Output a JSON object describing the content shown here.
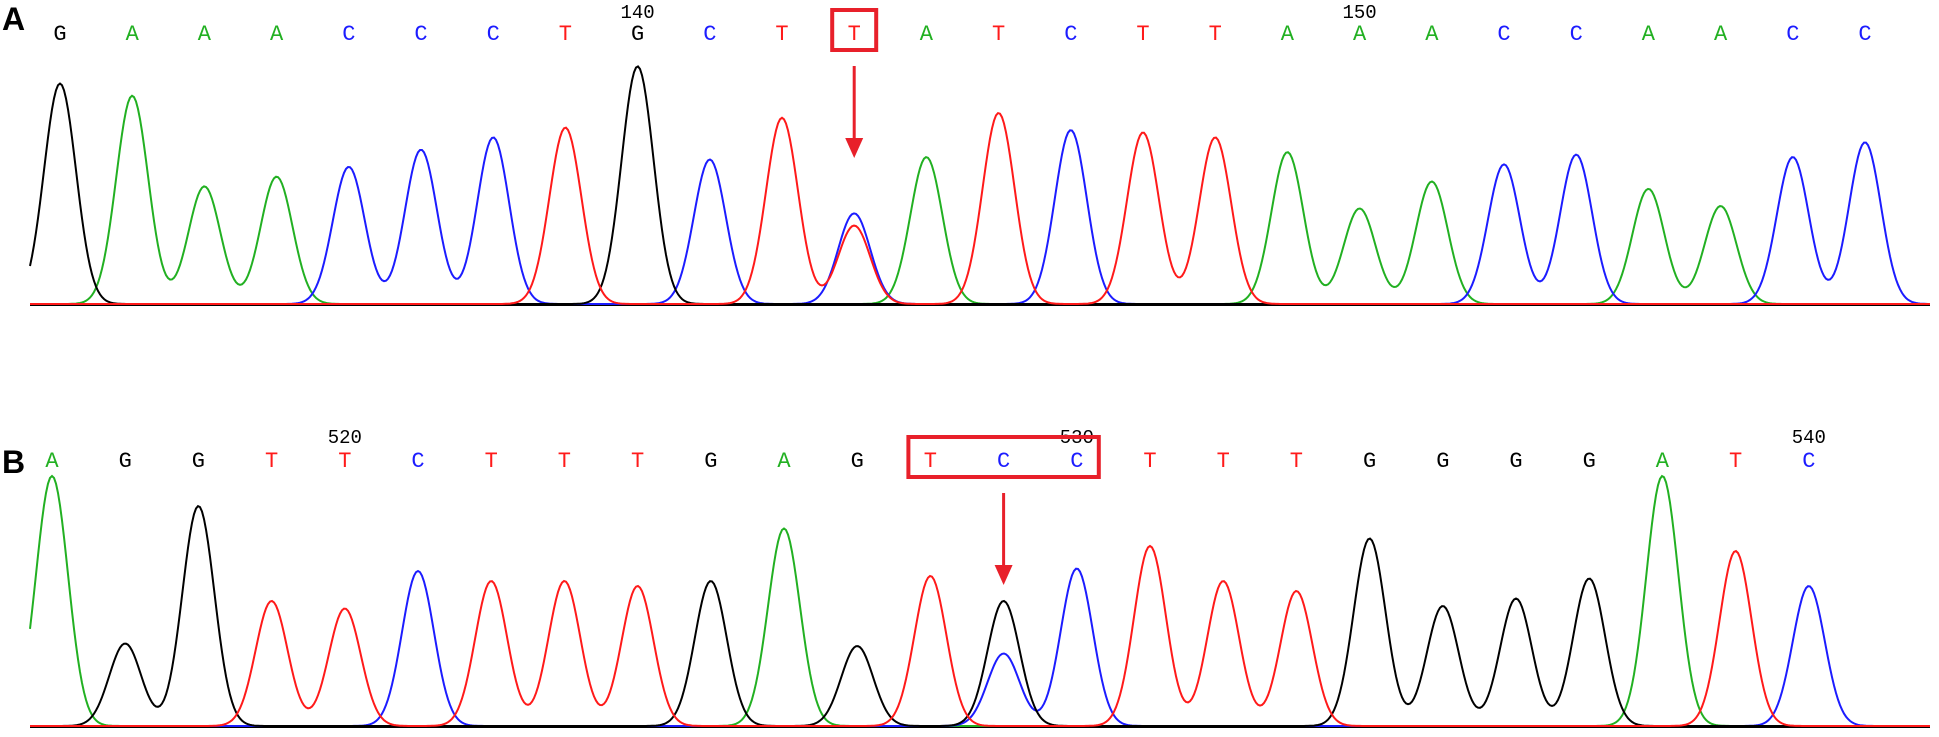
{
  "chart_data": [
    {
      "panel": "A",
      "type": "chromatogram",
      "colors": {
        "A": "#22b022",
        "C": "#1c1cff",
        "G": "#000000",
        "T": "#ff1a1a"
      },
      "bases": [
        "G",
        "A",
        "A",
        "A",
        "C",
        "C",
        "C",
        "T",
        "G",
        "C",
        "T",
        "T",
        "A",
        "T",
        "C",
        "T",
        "T",
        "A",
        "A",
        "A",
        "C",
        "C",
        "A",
        "A",
        "C",
        "C"
      ],
      "position_labels": [
        {
          "index": 8,
          "text": "140"
        },
        {
          "index": 18,
          "text": "150"
        }
      ],
      "highlight": {
        "start": 11,
        "end": 11
      },
      "peaks": [
        {
          "base": "G",
          "h": 0.9
        },
        {
          "base": "A",
          "h": 0.85
        },
        {
          "base": "A",
          "h": 0.48
        },
        {
          "base": "A",
          "h": 0.52
        },
        {
          "base": "C",
          "h": 0.56
        },
        {
          "base": "C",
          "h": 0.63
        },
        {
          "base": "C",
          "h": 0.68
        },
        {
          "base": "T",
          "h": 0.72
        },
        {
          "base": "G",
          "h": 0.97
        },
        {
          "base": "C",
          "h": 0.59
        },
        {
          "base": "T",
          "h": 0.76
        },
        {
          "base": "C",
          "h": 0.37,
          "secondary": {
            "base": "T",
            "h": 0.32
          }
        },
        {
          "base": "A",
          "h": 0.6
        },
        {
          "base": "T",
          "h": 0.78
        },
        {
          "base": "C",
          "h": 0.71
        },
        {
          "base": "T",
          "h": 0.7
        },
        {
          "base": "T",
          "h": 0.68
        },
        {
          "base": "A",
          "h": 0.62
        },
        {
          "base": "A",
          "h": 0.39
        },
        {
          "base": "A",
          "h": 0.5
        },
        {
          "base": "C",
          "h": 0.57
        },
        {
          "base": "C",
          "h": 0.61
        },
        {
          "base": "A",
          "h": 0.47
        },
        {
          "base": "A",
          "h": 0.4
        },
        {
          "base": "C",
          "h": 0.6
        },
        {
          "base": "C",
          "h": 0.66
        }
      ]
    },
    {
      "panel": "B",
      "type": "chromatogram",
      "colors": {
        "A": "#22b022",
        "C": "#1c1cff",
        "G": "#000000",
        "T": "#ff1a1a"
      },
      "bases": [
        "A",
        "G",
        "G",
        "T",
        "T",
        "C",
        "T",
        "T",
        "T",
        "G",
        "A",
        "G",
        "T",
        "C",
        "C",
        "T",
        "T",
        "T",
        "G",
        "G",
        "G",
        "G",
        "A",
        "T",
        "C"
      ],
      "position_labels": [
        {
          "index": 4,
          "text": "520"
        },
        {
          "index": 14,
          "text": "530"
        },
        {
          "index": 24,
          "text": "540"
        }
      ],
      "highlight": {
        "start": 12,
        "end": 14
      },
      "peaks": [
        {
          "base": "A",
          "h": 1.0
        },
        {
          "base": "G",
          "h": 0.33
        },
        {
          "base": "G",
          "h": 0.88
        },
        {
          "base": "T",
          "h": 0.5
        },
        {
          "base": "T",
          "h": 0.47
        },
        {
          "base": "C",
          "h": 0.62
        },
        {
          "base": "T",
          "h": 0.58
        },
        {
          "base": "T",
          "h": 0.58
        },
        {
          "base": "T",
          "h": 0.56
        },
        {
          "base": "G",
          "h": 0.58
        },
        {
          "base": "A",
          "h": 0.79
        },
        {
          "base": "G",
          "h": 0.32
        },
        {
          "base": "T",
          "h": 0.6
        },
        {
          "base": "G",
          "h": 0.5,
          "secondary": {
            "base": "C",
            "h": 0.29
          }
        },
        {
          "base": "C",
          "h": 0.63
        },
        {
          "base": "T",
          "h": 0.72
        },
        {
          "base": "T",
          "h": 0.58
        },
        {
          "base": "T",
          "h": 0.54
        },
        {
          "base": "G",
          "h": 0.75
        },
        {
          "base": "G",
          "h": 0.48
        },
        {
          "base": "G",
          "h": 0.51
        },
        {
          "base": "G",
          "h": 0.59
        },
        {
          "base": "A",
          "h": 1.0
        },
        {
          "base": "T",
          "h": 0.7
        },
        {
          "base": "C",
          "h": 0.56
        }
      ]
    }
  ],
  "panel_labels": [
    "A",
    "B"
  ]
}
